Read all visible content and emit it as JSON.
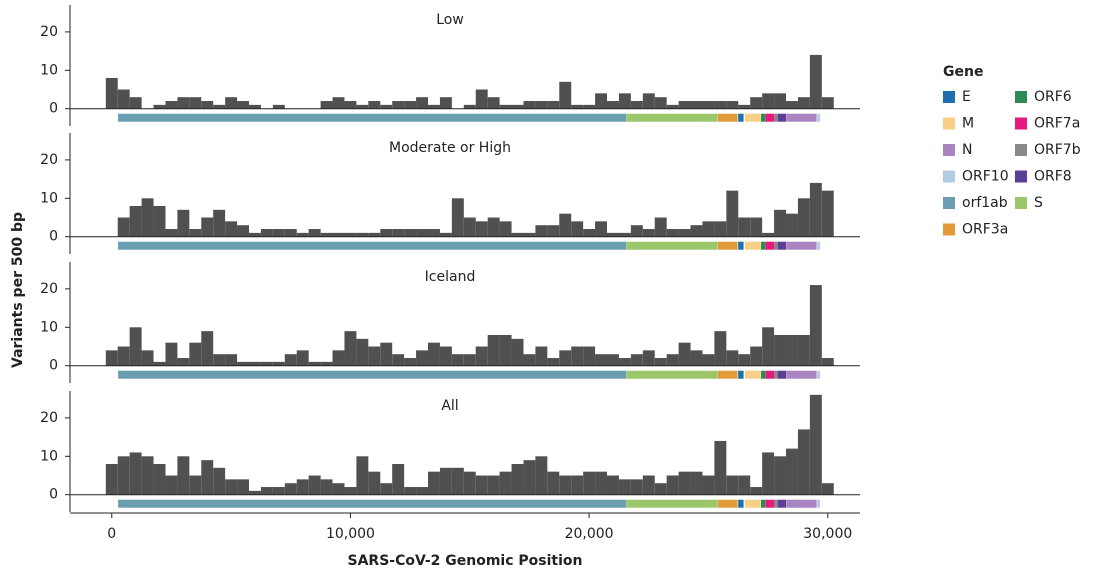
{
  "chart_data": [
    {
      "type": "histogram",
      "title": "Low",
      "color": "#505050",
      "ylim": [
        -4.5,
        27
      ],
      "yticks": [
        0,
        10,
        20
      ],
      "bins": [
        -250,
        250,
        750,
        1250,
        1750,
        2250,
        2750,
        3250,
        3750,
        4250,
        4750,
        5250,
        5750,
        6250,
        6750,
        7250,
        7750,
        8250,
        8750,
        9250,
        9750,
        10250,
        10750,
        11250,
        11750,
        12250,
        12750,
        13250,
        13750,
        14250,
        14750,
        15250,
        15750,
        16250,
        16750,
        17250,
        17750,
        18250,
        18750,
        19250,
        19750,
        20250,
        20750,
        21250,
        21750,
        22250,
        22750,
        23250,
        23750,
        24250,
        24750,
        25250,
        25750,
        26250,
        26750,
        27250,
        27750,
        28250,
        28750,
        29250,
        29750,
        30250
      ],
      "values": [
        8,
        5,
        3,
        0,
        1,
        2,
        3,
        3,
        2,
        1,
        3,
        2,
        1,
        0,
        1,
        0,
        0,
        0,
        2,
        3,
        2,
        1,
        2,
        1,
        2,
        2,
        3,
        1,
        3,
        0,
        1,
        5,
        3,
        1,
        1,
        2,
        2,
        2,
        7,
        1,
        1,
        4,
        2,
        4,
        2,
        4,
        3,
        1,
        2,
        2,
        2,
        2,
        2,
        1,
        3,
        4,
        4,
        2,
        3,
        14,
        3
      ]
    },
    {
      "type": "histogram",
      "title": "Moderate or High",
      "color": "#505050",
      "ylim": [
        -4.5,
        27
      ],
      "yticks": [
        0,
        10,
        20
      ],
      "bins": [
        -250,
        250,
        750,
        1250,
        1750,
        2250,
        2750,
        3250,
        3750,
        4250,
        4750,
        5250,
        5750,
        6250,
        6750,
        7250,
        7750,
        8250,
        8750,
        9250,
        9750,
        10250,
        10750,
        11250,
        11750,
        12250,
        12750,
        13250,
        13750,
        14250,
        14750,
        15250,
        15750,
        16250,
        16750,
        17250,
        17750,
        18250,
        18750,
        19250,
        19750,
        20250,
        20750,
        21250,
        21750,
        22250,
        22750,
        23250,
        23750,
        24250,
        24750,
        25250,
        25750,
        26250,
        26750,
        27250,
        27750,
        28250,
        28750,
        29250,
        29750,
        30250
      ],
      "values": [
        0,
        5,
        8,
        10,
        8,
        2,
        7,
        2,
        5,
        7,
        4,
        3,
        1,
        2,
        2,
        2,
        1,
        2,
        1,
        1,
        1,
        1,
        1,
        2,
        2,
        2,
        2,
        2,
        1,
        10,
        5,
        4,
        5,
        4,
        1,
        1,
        3,
        3,
        6,
        4,
        2,
        4,
        1,
        1,
        3,
        2,
        5,
        2,
        2,
        3,
        4,
        4,
        12,
        5,
        5,
        1,
        7,
        6,
        10,
        14,
        12
      ]
    },
    {
      "type": "histogram",
      "title": "Iceland",
      "color": "#505050",
      "ylim": [
        -4.5,
        27
      ],
      "yticks": [
        0,
        10,
        20
      ],
      "bins": [
        -250,
        250,
        750,
        1250,
        1750,
        2250,
        2750,
        3250,
        3750,
        4250,
        4750,
        5250,
        5750,
        6250,
        6750,
        7250,
        7750,
        8250,
        8750,
        9250,
        9750,
        10250,
        10750,
        11250,
        11750,
        12250,
        12750,
        13250,
        13750,
        14250,
        14750,
        15250,
        15750,
        16250,
        16750,
        17250,
        17750,
        18250,
        18750,
        19250,
        19750,
        20250,
        20750,
        21250,
        21750,
        22250,
        22750,
        23250,
        23750,
        24250,
        24750,
        25250,
        25750,
        26250,
        26750,
        27250,
        27750,
        28250,
        28750,
        29250,
        29750,
        30250
      ],
      "values": [
        4,
        5,
        10,
        4,
        1,
        6,
        2,
        6,
        9,
        3,
        3,
        1,
        1,
        1,
        1,
        3,
        4,
        1,
        1,
        4,
        9,
        7,
        5,
        6,
        3,
        2,
        4,
        6,
        5,
        3,
        3,
        5,
        8,
        8,
        7,
        3,
        5,
        2,
        4,
        5,
        5,
        3,
        3,
        2,
        3,
        4,
        2,
        3,
        6,
        4,
        3,
        9,
        4,
        3,
        5,
        10,
        8,
        8,
        8,
        21,
        2
      ]
    },
    {
      "type": "histogram",
      "title": "All",
      "color": "#505050",
      "ylim": [
        -4.5,
        27
      ],
      "yticks": [
        0,
        10,
        20
      ],
      "bins": [
        -250,
        250,
        750,
        1250,
        1750,
        2250,
        2750,
        3250,
        3750,
        4250,
        4750,
        5250,
        5750,
        6250,
        6750,
        7250,
        7750,
        8250,
        8750,
        9250,
        9750,
        10250,
        10750,
        11250,
        11750,
        12250,
        12750,
        13250,
        13750,
        14250,
        14750,
        15250,
        15750,
        16250,
        16750,
        17250,
        17750,
        18250,
        18750,
        19250,
        19750,
        20250,
        20750,
        21250,
        21750,
        22250,
        22750,
        23250,
        23750,
        24250,
        24750,
        25250,
        25750,
        26250,
        26750,
        27250,
        27750,
        28250,
        28750,
        29250,
        29750,
        30250
      ],
      "values": [
        8,
        10,
        11,
        10,
        8,
        5,
        10,
        5,
        9,
        7,
        4,
        4,
        1,
        2,
        2,
        3,
        4,
        5,
        4,
        3,
        2,
        10,
        6,
        3,
        8,
        2,
        2,
        6,
        7,
        7,
        6,
        5,
        5,
        6,
        8,
        9,
        10,
        6,
        5,
        5,
        6,
        6,
        5,
        4,
        4,
        5,
        3,
        5,
        6,
        6,
        5,
        14,
        5,
        5,
        2,
        11,
        10,
        12,
        17,
        26,
        3
      ]
    }
  ],
  "y_axis_label": "Variants per 500 bp",
  "x_axis": {
    "label": "SARS-CoV-2 Genomic Position",
    "xlim": [
      -1750,
      31350
    ],
    "xticks": [
      0,
      {
        "value": 10000,
        "label": "10,000"
      },
      {
        "value": 20000,
        "label": "20,000"
      },
      {
        "value": 30000,
        "label": "30,000"
      }
    ]
  },
  "gene_legend": {
    "title": "Gene",
    "genes": [
      {
        "name": "E",
        "color": "#1f6fae",
        "start": 26245,
        "end": 26472
      },
      {
        "name": "M",
        "color": "#f7cf86",
        "start": 26523,
        "end": 27191
      },
      {
        "name": "N",
        "color": "#a984c0",
        "start": 28274,
        "end": 29533
      },
      {
        "name": "ORF10",
        "color": "#b3cde0",
        "start": 29558,
        "end": 29674
      },
      {
        "name": "orf1ab",
        "color": "#6b9db0",
        "start": 266,
        "end": 21555
      },
      {
        "name": "ORF3a",
        "color": "#e39a3a",
        "start": 25393,
        "end": 26220
      },
      {
        "name": "ORF6",
        "color": "#2e8b57",
        "start": 27202,
        "end": 27387
      },
      {
        "name": "ORF7a",
        "color": "#e6197f",
        "start": 27394,
        "end": 27759
      },
      {
        "name": "ORF7b",
        "color": "#888888",
        "start": 27756,
        "end": 27887
      },
      {
        "name": "ORF8",
        "color": "#5b3f94",
        "start": 27894,
        "end": 28259
      },
      {
        "name": "S",
        "color": "#9bc76a",
        "start": 21563,
        "end": 25384
      }
    ]
  }
}
